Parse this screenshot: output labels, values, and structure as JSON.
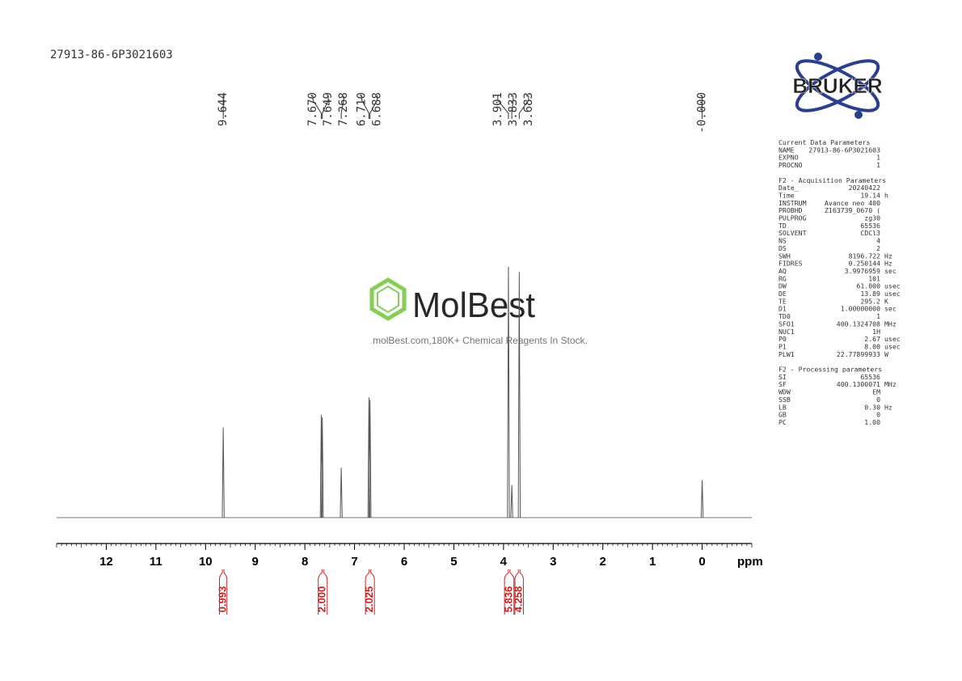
{
  "chart_data": {
    "type": "nmr",
    "title": "27913-86-6P3021603",
    "x_label": "ppm",
    "xlim": [
      13,
      -1
    ],
    "xticks": [
      12,
      11,
      10,
      9,
      8,
      7,
      6,
      5,
      4,
      3,
      2,
      1,
      0
    ],
    "ylim": [
      0,
      100
    ],
    "color": "#555555",
    "peaks": {
      "ppm": [
        9.644,
        7.67,
        7.649,
        7.268,
        6.71,
        6.688,
        3.901,
        3.833,
        3.683,
        0
      ],
      "ppm_labels": [
        "9.644",
        "7.670",
        "7.649",
        "7.268",
        "6.710",
        "6.688",
        "3.901",
        "3.833",
        "3.683",
        "-0.000"
      ],
      "heights": [
        36,
        41,
        40,
        20,
        48,
        47,
        100,
        13,
        98,
        15
      ]
    },
    "integrals": {
      "color": "#cc2222",
      "values": [
        0.993,
        2,
        2.025,
        5.836,
        4.258
      ],
      "value_labels": [
        "0.993",
        "2.000",
        "2.025",
        "5.836",
        "4.258"
      ],
      "ranges": [
        [
          9.72,
          9.57
        ],
        [
          7.73,
          7.55
        ],
        [
          6.78,
          6.6
        ],
        [
          3.98,
          3.79
        ],
        [
          3.77,
          3.6
        ]
      ]
    }
  },
  "logo": "BRUKER",
  "watermark": {
    "brand": "MolBest",
    "text": "molBest.com,180K+ Chemical Reagents In Stock."
  },
  "parameters": {
    "sections": [
      {
        "title": "Current Data Parameters",
        "rows": [
          [
            "NAME",
            "27913-86-6P3021603"
          ],
          [
            "EXPNO",
            "1"
          ],
          [
            "PROCNO",
            "1"
          ]
        ]
      },
      {
        "title": "F2 - Acquisition Parameters",
        "rows": [
          [
            "Date_",
            "20240422"
          ],
          [
            "Time",
            "19.14",
            "h"
          ],
          [
            "INSTRUM",
            "Avance neo 400"
          ],
          [
            "PROBHD",
            "Z163739_0670 ("
          ],
          [
            "PULPROG",
            "zg30"
          ],
          [
            "TD",
            "65536"
          ],
          [
            "SOLVENT",
            "CDCl3"
          ],
          [
            "NS",
            "4"
          ],
          [
            "DS",
            "2"
          ],
          [
            "SWH",
            "8196.722",
            "Hz"
          ],
          [
            "FIDRES",
            "0.250144",
            "Hz"
          ],
          [
            "AQ",
            "3.9976959",
            "sec"
          ],
          [
            "RG",
            "101"
          ],
          [
            "DW",
            "61.000",
            "usec"
          ],
          [
            "DE",
            "13.89",
            "usec"
          ],
          [
            "TE",
            "295.2",
            "K"
          ],
          [
            "D1",
            "1.00000000",
            "sec"
          ],
          [
            "TD0",
            "1"
          ],
          [
            "SFO1",
            "400.1324708",
            "MHz"
          ],
          [
            "NUC1",
            "1H"
          ],
          [
            "P0",
            "2.67",
            "usec"
          ],
          [
            "P1",
            "8.00",
            "usec"
          ],
          [
            "PLW1",
            "22.77899933",
            "W"
          ]
        ]
      },
      {
        "title": "F2 - Processing parameters",
        "rows": [
          [
            "SI",
            "65536"
          ],
          [
            "SF",
            "400.1300071",
            "MHz"
          ],
          [
            "WDW",
            "EM"
          ],
          [
            "SSB",
            "0"
          ],
          [
            "LB",
            "0.30",
            "Hz"
          ],
          [
            "GB",
            "0"
          ],
          [
            "PC",
            "1.00"
          ]
        ]
      }
    ]
  }
}
